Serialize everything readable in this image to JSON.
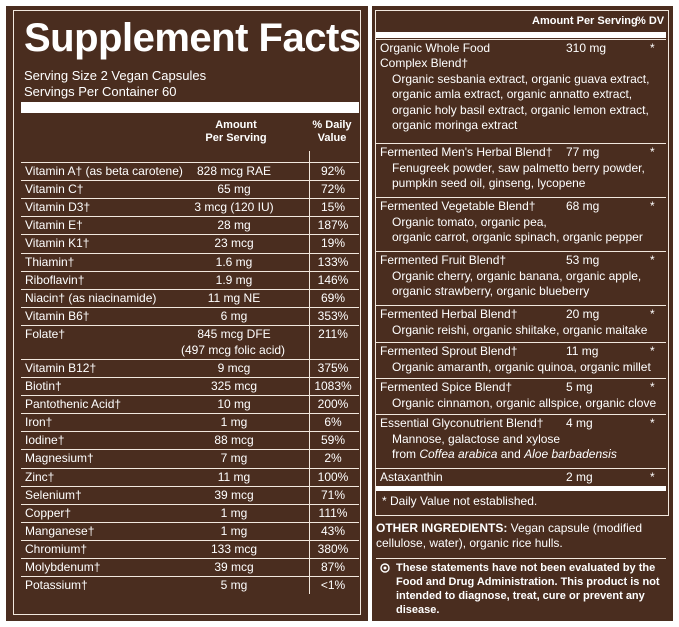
{
  "title": "Supplement Facts",
  "serving_size": "Serving Size 2 Vegan Capsules",
  "servings_per_container": "Servings Per Container 60",
  "left_header": {
    "amount_line1": "Amount",
    "amount_line2": "Per Serving",
    "dv_line1": "% Daily",
    "dv_line2": "Value"
  },
  "nutrients": [
    {
      "name": "Vitamin A† (as beta carotene)",
      "amount": "828 mcg RAE",
      "dv": "92%"
    },
    {
      "name": "Vitamin C†",
      "amount": "65 mg",
      "dv": "72%"
    },
    {
      "name": "Vitamin D3†",
      "amount": "3 mcg (120 IU)",
      "dv": "15%"
    },
    {
      "name": "Vitamin E†",
      "amount": "28 mg",
      "dv": "187%"
    },
    {
      "name": "Vitamin K1†",
      "amount": "23 mcg",
      "dv": "19%"
    },
    {
      "name": "Thiamin†",
      "amount": "1.6 mg",
      "dv": "133%"
    },
    {
      "name": "Riboflavin†",
      "amount": "1.9 mg",
      "dv": "146%"
    },
    {
      "name": "Niacin† (as niacinamide)",
      "amount": "11 mg NE",
      "dv": "69%"
    },
    {
      "name": "Vitamin B6†",
      "amount": "6 mg",
      "dv": "353%"
    },
    {
      "name": "Folate†",
      "amount": "845 mcg DFE",
      "amount2": "(497 mcg folic acid)",
      "dv": "211%"
    },
    {
      "name": "Vitamin B12†",
      "amount": "9 mcg",
      "dv": "375%"
    },
    {
      "name": "Biotin†",
      "amount": "325 mcg",
      "dv": "1083%"
    },
    {
      "name": "Pantothenic Acid†",
      "amount": "10 mg",
      "dv": "200%"
    },
    {
      "name": "Iron†",
      "amount": "1 mg",
      "dv": "6%"
    },
    {
      "name": "Iodine†",
      "amount": "88 mcg",
      "dv": "59%"
    },
    {
      "name": "Magnesium†",
      "amount": "7 mg",
      "dv": "2%"
    },
    {
      "name": "Zinc†",
      "amount": "11 mg",
      "dv": "100%"
    },
    {
      "name": "Selenium†",
      "amount": "39 mcg",
      "dv": "71%"
    },
    {
      "name": "Copper†",
      "amount": "1 mg",
      "dv": "111%"
    },
    {
      "name": "Manganese†",
      "amount": "1 mg",
      "dv": "43%"
    },
    {
      "name": "Chromium†",
      "amount": "133 mcg",
      "dv": "380%"
    },
    {
      "name": "Molybdenum†",
      "amount": "39 mcg",
      "dv": "87%"
    },
    {
      "name": "Potassium†",
      "amount": "5 mg",
      "dv": "<1%"
    }
  ],
  "right_header": {
    "amount": "Amount Per Serving",
    "dv": "% DV"
  },
  "blends": [
    {
      "name": "Organic Whole Food",
      "name2": "Complex Blend†",
      "amount": "310 mg",
      "star": "*",
      "desc": [
        "Organic sesbania extract, organic guava extract,",
        "organic amla extract, organic annatto extract,",
        "organic holy basil extract, organic lemon extract,",
        "organic moringa extract"
      ]
    },
    {
      "name": "Fermented Men's Herbal Blend†",
      "amount": "77 mg",
      "star": "*",
      "desc": [
        "Fenugreek powder, saw palmetto berry powder,",
        "pumpkin seed oil, ginseng, lycopene"
      ]
    },
    {
      "name": "Fermented Vegetable Blend†",
      "amount": "68 mg",
      "star": "*",
      "desc": [
        "Organic tomato, organic pea,",
        "organic carrot, organic spinach, organic pepper"
      ]
    },
    {
      "name": "Fermented Fruit Blend†",
      "amount": "53 mg",
      "star": "*",
      "desc": [
        "Organic cherry, organic banana, organic apple,",
        "organic strawberry, organic blueberry"
      ]
    },
    {
      "name": "Fermented Herbal Blend†",
      "amount": "20 mg",
      "star": "*",
      "desc": [
        "Organic reishi, organic shiitake, organic maitake"
      ]
    },
    {
      "name": "Fermented Sprout Blend†",
      "amount": "11 mg",
      "star": "*",
      "desc": [
        "Organic amaranth, organic quinoa, organic millet"
      ]
    },
    {
      "name": "Fermented Spice Blend†",
      "amount": "5 mg",
      "star": "*",
      "desc": [
        "Organic cinnamon, organic allspice, organic clove"
      ]
    },
    {
      "name": "Essential Glyconutrient Blend†",
      "amount": "4 mg",
      "star": "*",
      "desc": [
        "Mannose, galactose and xylose"
      ],
      "desc_italic_prefix": "from ",
      "desc_italic_a": "Coffea arabica",
      "desc_italic_mid": " and ",
      "desc_italic_b": "Aloe barbadensis"
    },
    {
      "name": "Astaxanthin",
      "amount": "2 mg",
      "star": "*",
      "desc": []
    }
  ],
  "dv_note": "* Daily Value not established.",
  "other_label": "OTHER INGREDIENTS:",
  "other_text": " Vegan capsule (modified cellulose, water), organic rice hulls.",
  "disclaimer": "These statements have not been evaluated by the Food and Drug Administration. This product is not intended to diagnose, treat, cure or prevent any disease.",
  "colors": {
    "panel": "#4a2d1f",
    "line": "#f2e8de"
  }
}
